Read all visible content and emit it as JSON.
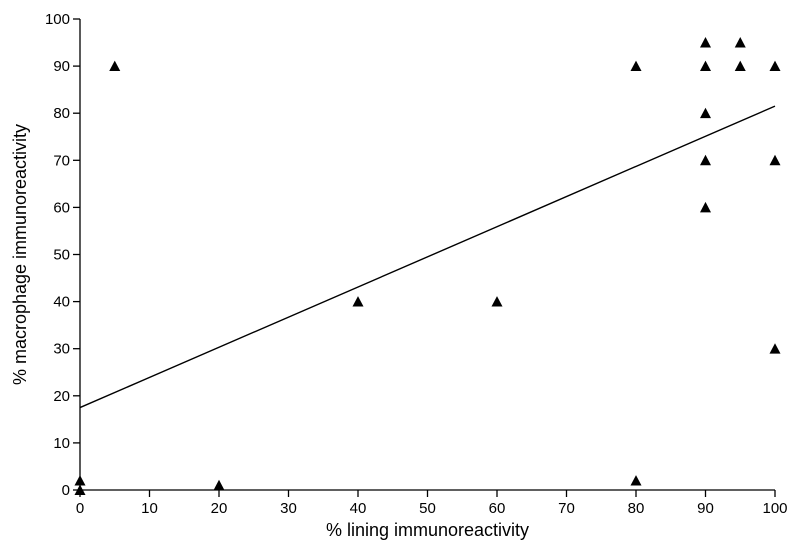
{
  "chart_data": {
    "type": "scatter",
    "xlabel": "% lining immunoreactivity",
    "ylabel": "% macrophage immunoreactivity",
    "xlim": [
      0,
      100
    ],
    "ylim": [
      0,
      100
    ],
    "x_ticks": [
      "0",
      "10",
      "20",
      "30",
      "40",
      "50",
      "60",
      "70",
      "80",
      "90",
      "100"
    ],
    "y_ticks": [
      "0",
      "10",
      "20",
      "30",
      "40",
      "50",
      "60",
      "70",
      "80",
      "90",
      "100"
    ],
    "grid": false,
    "marker": "triangle",
    "color": "#000000",
    "points": [
      {
        "x": 0,
        "y": 2
      },
      {
        "x": 0,
        "y": 0
      },
      {
        "x": 5,
        "y": 90
      },
      {
        "x": 20,
        "y": 1
      },
      {
        "x": 40,
        "y": 40
      },
      {
        "x": 60,
        "y": 40
      },
      {
        "x": 80,
        "y": 90
      },
      {
        "x": 80,
        "y": 2
      },
      {
        "x": 90,
        "y": 95
      },
      {
        "x": 90,
        "y": 90
      },
      {
        "x": 90,
        "y": 80
      },
      {
        "x": 90,
        "y": 70
      },
      {
        "x": 90,
        "y": 60
      },
      {
        "x": 95,
        "y": 95
      },
      {
        "x": 95,
        "y": 90
      },
      {
        "x": 100,
        "y": 90
      },
      {
        "x": 100,
        "y": 70
      },
      {
        "x": 100,
        "y": 30
      }
    ],
    "regression_line": {
      "x": [
        0,
        100
      ],
      "y": [
        17.5,
        81.5
      ]
    }
  }
}
